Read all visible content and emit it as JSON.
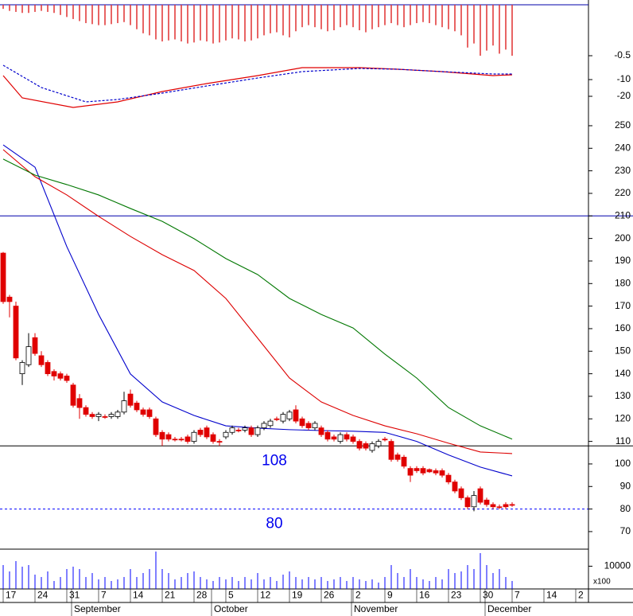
{
  "chart_data": [
    {
      "type": "macd",
      "ylim": [
        0,
        -30
      ],
      "yticks": [
        -0.5,
        -10,
        -20
      ],
      "histogram": {
        "color": "#e03030",
        "values": [
          -0.04,
          -0.06,
          -0.07,
          -0.08,
          -0.08,
          -0.07,
          -0.06,
          -0.07,
          -0.08,
          -0.1,
          -0.12,
          -0.14,
          -0.16,
          -0.18,
          -0.19,
          -0.2,
          -0.2,
          -0.19,
          -0.18,
          -0.17,
          -0.2,
          -0.24,
          -0.28,
          -0.3,
          -0.34,
          -0.36,
          -0.35,
          -0.34,
          -0.36,
          -0.38,
          -0.37,
          -0.35,
          -0.36,
          -0.38,
          -0.37,
          -0.35,
          -0.33,
          -0.34,
          -0.36,
          -0.35,
          -0.33,
          -0.3,
          -0.28,
          -0.27,
          -0.3,
          -0.32,
          -0.26,
          -0.22,
          -0.2,
          -0.22,
          -0.24,
          -0.26,
          -0.25,
          -0.22,
          -0.2,
          -0.22,
          -0.25,
          -0.27,
          -0.24,
          -0.22,
          -0.2,
          -0.18,
          -0.2,
          -0.22,
          -0.2,
          -0.18,
          -0.17,
          -0.18,
          -0.2,
          -0.22,
          -0.24,
          -0.26,
          -0.3,
          -0.42,
          -0.38,
          -0.5,
          -0.45,
          -0.4,
          -0.48,
          -0.44,
          -0.5
        ]
      },
      "series": [
        {
          "color": "#e00000",
          "style": "solid",
          "x": [
            0,
            3,
            11,
            18,
            25,
            32,
            40,
            47,
            56,
            62,
            69,
            77,
            80
          ],
          "values": [
            -8.42,
            -20.95,
            -26.67,
            -23.33,
            -17.14,
            -12.38,
            -8.42,
            -5.25,
            -5.25,
            -5.88,
            -6.83,
            -8.42,
            -8.1
          ]
        },
        {
          "color": "#0000cc",
          "style": "dotted",
          "x": [
            0,
            6,
            13,
            18,
            25,
            32,
            40,
            47,
            56,
            62,
            69,
            77,
            80
          ],
          "values": [
            -4.3,
            -14.76,
            -23.33,
            -21.9,
            -18.1,
            -13.81,
            -9.37,
            -6.83,
            -5.57,
            -5.88,
            -6.83,
            -7.78,
            -7.78
          ]
        }
      ]
    },
    {
      "type": "candlestick",
      "ylim": [
        62,
        255
      ],
      "yticks": [
        70,
        80,
        90,
        100,
        110,
        120,
        130,
        140,
        150,
        160,
        170,
        180,
        190,
        200,
        210,
        220,
        230,
        240,
        250
      ],
      "up_color": "#ffffff",
      "down_color": "#e00000",
      "open": [
        193.5,
        174,
        170,
        140,
        144,
        156,
        148,
        145,
        141,
        140,
        139,
        135,
        129,
        125,
        122,
        121,
        121,
        121,
        121,
        123,
        131,
        127,
        124,
        124,
        120,
        114,
        113,
        111,
        111,
        112,
        110,
        115,
        116,
        113,
        110,
        112,
        114,
        115,
        115,
        116,
        113,
        116,
        117,
        120,
        119,
        120,
        124,
        120,
        118,
        116,
        116,
        114,
        112,
        110,
        113,
        112,
        110,
        109,
        106,
        108,
        111,
        110,
        104,
        103,
        98,
        98,
        98,
        97.5,
        97,
        97,
        95,
        92,
        89,
        85,
        81,
        89,
        84,
        82,
        81,
        82,
        82
      ],
      "high": [
        194,
        175,
        172,
        146,
        158,
        158,
        150,
        146,
        142,
        141,
        140,
        136,
        131,
        126,
        123,
        123,
        122,
        123,
        124,
        132,
        133,
        128,
        125,
        125,
        121,
        115,
        114,
        112,
        112,
        113,
        115,
        116,
        117,
        114,
        111,
        115,
        117,
        116,
        117,
        117,
        117,
        119,
        120,
        121,
        123,
        124,
        126,
        121,
        119,
        119,
        117,
        115,
        113,
        114,
        114,
        113,
        111,
        110,
        110,
        111,
        112,
        111,
        105,
        104,
        99,
        99,
        99,
        98,
        98,
        98,
        96,
        93,
        90,
        86,
        88,
        90,
        85,
        83,
        82,
        83,
        83
      ],
      "low": [
        171,
        165,
        146,
        135,
        143,
        148,
        143,
        139,
        137,
        137,
        136,
        125,
        120,
        121,
        120,
        119,
        120,
        120,
        120,
        122,
        125,
        123,
        121,
        120,
        112,
        108,
        110,
        110,
        110,
        109,
        109,
        112,
        111,
        109,
        108,
        111,
        113,
        114,
        114,
        112,
        112,
        115,
        116,
        119,
        118,
        119,
        118,
        116,
        115,
        115,
        112,
        110,
        110,
        109,
        110,
        109,
        106,
        106,
        105,
        107,
        110,
        101,
        101,
        98,
        92,
        96,
        95,
        96,
        95,
        94,
        91,
        87,
        84,
        80,
        79,
        82,
        81,
        80,
        80,
        80,
        81
      ],
      "close": [
        172,
        172,
        147,
        145,
        152,
        149,
        144,
        140,
        139,
        138,
        137,
        126,
        125,
        122,
        121,
        122,
        121,
        122,
        123,
        128,
        126,
        124,
        122,
        121,
        113,
        111,
        111,
        111,
        111,
        110,
        114,
        113,
        112,
        110,
        110,
        114,
        116,
        115,
        116,
        113,
        116,
        118,
        119,
        120,
        122,
        123,
        119,
        117,
        116,
        118,
        113,
        111,
        111,
        113,
        111,
        110,
        107,
        107,
        109,
        110,
        111,
        102,
        102,
        99,
        95,
        97,
        96,
        96.5,
        96,
        95,
        92,
        88,
        85,
        81,
        86,
        83,
        82,
        81,
        81,
        81,
        82
      ],
      "series": [
        {
          "color": "#0000cc",
          "x": [
            0,
            5,
            10,
            15,
            20,
            25,
            30,
            35,
            40,
            45,
            50,
            55,
            60,
            65,
            70,
            75,
            80
          ],
          "values": [
            241.5,
            231.6,
            196.4,
            166.3,
            139.9,
            127.5,
            121.5,
            116.9,
            115.9,
            115.2,
            114.8,
            114.5,
            114,
            110,
            104,
            98.6,
            94.7
          ]
        },
        {
          "color": "#dd0000",
          "x": [
            0,
            5,
            10,
            15,
            20,
            25,
            30,
            35,
            40,
            45,
            50,
            55,
            60,
            65,
            70,
            75,
            80
          ],
          "values": [
            239.4,
            227.4,
            219.3,
            209.8,
            200.9,
            192.8,
            185.8,
            173.4,
            155.8,
            138.1,
            127.5,
            121.5,
            116.9,
            113.4,
            109.2,
            105.3,
            104.6
          ]
        },
        {
          "color": "#007700",
          "x": [
            0,
            5,
            10,
            15,
            20,
            25,
            30,
            35,
            40,
            45,
            50,
            55,
            60,
            65,
            70,
            75,
            80
          ],
          "values": [
            235.2,
            228.1,
            223.9,
            219.3,
            213.3,
            207.6,
            199.9,
            191.1,
            184,
            173.4,
            166.3,
            160.3,
            148.7,
            138.1,
            125,
            116.9,
            111
          ]
        }
      ],
      "hlines": [
        {
          "value": 210,
          "color": "#0000aa",
          "style": "solid",
          "labeled": false
        },
        {
          "value": 108,
          "color": "#000000",
          "style": "solid",
          "labeled": true
        },
        {
          "value": 80,
          "color": "#0000ff",
          "style": "dotted",
          "labeled": true
        }
      ]
    },
    {
      "type": "volume",
      "ylim": [
        0,
        17500
      ],
      "yticks": [
        10000
      ],
      "unit_label": "x100",
      "color": "#0000ff",
      "values": [
        10500,
        7700,
        12250,
        9800,
        10500,
        6300,
        5250,
        7700,
        3500,
        5250,
        8750,
        9800,
        8750,
        5250,
        7000,
        4200,
        5250,
        3500,
        4200,
        5250,
        8750,
        5250,
        7000,
        8750,
        16450,
        8750,
        7000,
        4200,
        5250,
        7000,
        7700,
        5250,
        4200,
        3500,
        5250,
        4200,
        5250,
        3500,
        5250,
        4200,
        7000,
        4200,
        5250,
        3500,
        6300,
        7700,
        5250,
        4200,
        5250,
        4200,
        5250,
        3500,
        4200,
        5250,
        3500,
        5250,
        4200,
        3500,
        4200,
        2800,
        5250,
        10500,
        7000,
        5250,
        8750,
        5250,
        4200,
        3500,
        5250,
        4200,
        8750,
        7000,
        7700,
        10500,
        8750,
        15750,
        10500,
        7000,
        8750,
        5250,
        3500
      ],
      "xticks": [
        {
          "value": 0,
          "label": "17"
        },
        {
          "value": 5,
          "label": "24"
        },
        {
          "value": 10,
          "label": "31"
        },
        {
          "value": 15,
          "label": "7"
        },
        {
          "value": 20,
          "label": "14"
        },
        {
          "value": 25,
          "label": "21"
        },
        {
          "value": 30,
          "label": "28"
        },
        {
          "value": 35,
          "label": "5"
        },
        {
          "value": 40,
          "label": "12"
        },
        {
          "value": 45,
          "label": "19"
        },
        {
          "value": 50,
          "label": "26"
        },
        {
          "value": 55,
          "label": "2"
        },
        {
          "value": 60,
          "label": "9"
        },
        {
          "value": 65,
          "label": "16"
        },
        {
          "value": 70,
          "label": "23"
        },
        {
          "value": 75,
          "label": "30"
        },
        {
          "value": 80,
          "label": "7"
        },
        {
          "value": 85,
          "label": "14"
        },
        {
          "value": 90,
          "label": "2"
        }
      ],
      "months": [
        {
          "value": 11,
          "label": "September"
        },
        {
          "value": 33,
          "label": "October"
        },
        {
          "value": 55,
          "label": "November"
        },
        {
          "value": 76,
          "label": "December"
        }
      ]
    }
  ]
}
